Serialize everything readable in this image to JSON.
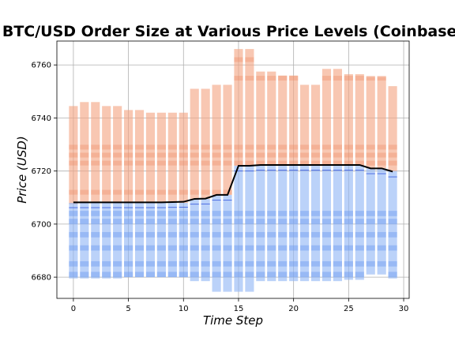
{
  "chart_data": {
    "type": "bar",
    "title": "BTC/USD Order Size at Various Price Levels (Coinbase)",
    "xlabel": "Time Step",
    "ylabel": "Price (USD)",
    "xlim": [
      -1.5,
      30.5
    ],
    "ylim": [
      6672,
      6769
    ],
    "xticks": [
      0,
      5,
      10,
      15,
      20,
      25,
      30
    ],
    "yticks": [
      6680,
      6700,
      6720,
      6740,
      6760
    ],
    "grid": true,
    "colors": {
      "ask": "#f4a582",
      "ask_dark": "#ef8a62",
      "bid": "#92b6f5",
      "bid_dark": "#6f9bf0",
      "midprice": "#000000",
      "level_line": "#3355dd"
    },
    "time_steps": [
      0,
      1,
      2,
      3,
      4,
      5,
      6,
      7,
      8,
      9,
      10,
      11,
      12,
      13,
      14,
      15,
      16,
      17,
      18,
      19,
      20,
      21,
      22,
      23,
      24,
      25,
      26,
      27,
      28,
      29
    ],
    "ask_range": [
      [
        6707.5,
        6744.5
      ],
      [
        6708,
        6746
      ],
      [
        6708,
        6746
      ],
      [
        6708,
        6744.5
      ],
      [
        6708,
        6744.5
      ],
      [
        6708,
        6743
      ],
      [
        6708,
        6743
      ],
      [
        6708,
        6742
      ],
      [
        6708,
        6742
      ],
      [
        6708,
        6742
      ],
      [
        6708,
        6742
      ],
      [
        6709.5,
        6751
      ],
      [
        6709.5,
        6751
      ],
      [
        6711,
        6752.5
      ],
      [
        6711,
        6752.5
      ],
      [
        6722,
        6766
      ],
      [
        6722,
        6766
      ],
      [
        6722,
        6757.5
      ],
      [
        6722,
        6757.5
      ],
      [
        6722,
        6756
      ],
      [
        6722,
        6756
      ],
      [
        6722,
        6752.5
      ],
      [
        6722,
        6752.5
      ],
      [
        6722,
        6758.5
      ],
      [
        6722,
        6758.5
      ],
      [
        6722,
        6756.5
      ],
      [
        6722,
        6756.5
      ],
      [
        6721,
        6755.5
      ],
      [
        6721,
        6755.5
      ],
      [
        6720,
        6752
      ]
    ],
    "bid_range": [
      [
        6679.5,
        6708
      ],
      [
        6679.5,
        6708
      ],
      [
        6679.5,
        6708
      ],
      [
        6679.5,
        6708
      ],
      [
        6679.5,
        6708
      ],
      [
        6680,
        6708
      ],
      [
        6680,
        6708
      ],
      [
        6680,
        6708
      ],
      [
        6680,
        6708
      ],
      [
        6680,
        6708
      ],
      [
        6680,
        6708
      ],
      [
        6678.5,
        6709.5
      ],
      [
        6678.5,
        6709.5
      ],
      [
        6674.5,
        6711
      ],
      [
        6674.5,
        6711
      ],
      [
        6674.5,
        6722
      ],
      [
        6674.5,
        6722
      ],
      [
        6678.5,
        6722
      ],
      [
        6678.5,
        6722
      ],
      [
        6678.5,
        6722
      ],
      [
        6678.5,
        6722
      ],
      [
        6678.5,
        6722
      ],
      [
        6678.5,
        6722
      ],
      [
        6678.5,
        6722
      ],
      [
        6678.5,
        6722
      ],
      [
        6679,
        6722
      ],
      [
        6679,
        6722
      ],
      [
        6681,
        6721
      ],
      [
        6681,
        6721
      ],
      [
        6679.5,
        6720
      ]
    ],
    "ask_large_levels": [
      6712,
      6723,
      6726,
      6729,
      6755,
      6762
    ],
    "bid_large_levels": [
      6681,
      6685,
      6691,
      6696,
      6701,
      6704
    ],
    "midprice": [
      6708.2,
      6708.2,
      6708.2,
      6708.2,
      6708.2,
      6708.2,
      6708.2,
      6708.2,
      6708.2,
      6708.3,
      6708.4,
      6709.5,
      6709.6,
      6711,
      6711,
      6722,
      6722,
      6722.3,
      6722.3,
      6722.3,
      6722.3,
      6722.3,
      6722.3,
      6722.3,
      6722.3,
      6722.3,
      6722.3,
      6721,
      6721,
      6719.8
    ]
  }
}
